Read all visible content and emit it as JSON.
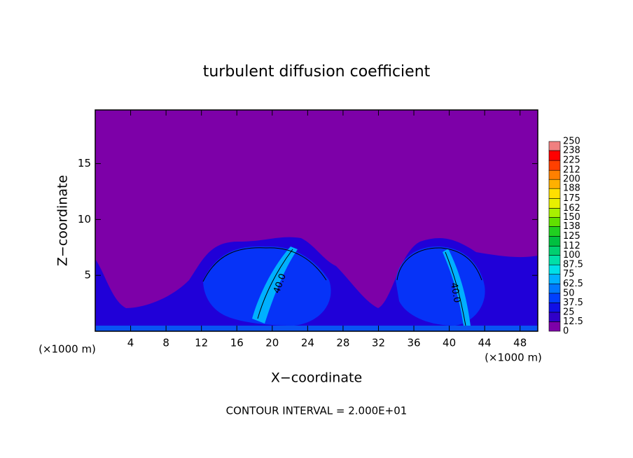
{
  "chart_data": {
    "type": "contour",
    "title": "turbulent diffusion coefficient",
    "xlabel": "X−coordinate",
    "ylabel": "Z−coordinate",
    "x_unit": "(×1000 m)",
    "footer": "CONTOUR INTERVAL = 2.000E+01",
    "contour_labels": [
      "40.0",
      "40.0"
    ],
    "xlim": [
      0,
      50
    ],
    "xticks": [
      4,
      8,
      12,
      16,
      20,
      24,
      28,
      32,
      36,
      40,
      44,
      48
    ],
    "ylim": [
      0,
      19.8
    ],
    "yticks": [
      5,
      10,
      15
    ],
    "colorbar": {
      "levels": [
        0,
        12.5,
        25,
        37.5,
        50,
        62.5,
        75,
        87.5,
        100,
        112,
        125,
        138,
        150,
        162,
        175,
        188,
        200,
        212,
        225,
        238,
        250
      ],
      "colors": [
        "#7d00a8",
        "#3000c8",
        "#1010e6",
        "#0040ff",
        "#0078ff",
        "#00b0ff",
        "#00e0e8",
        "#00e0a8",
        "#00d070",
        "#00c040",
        "#20d020",
        "#60e000",
        "#a8f000",
        "#e8f000",
        "#ffe000",
        "#ffb000",
        "#ff8000",
        "#ff4000",
        "#ff0000",
        "#f08080"
      ]
    }
  }
}
